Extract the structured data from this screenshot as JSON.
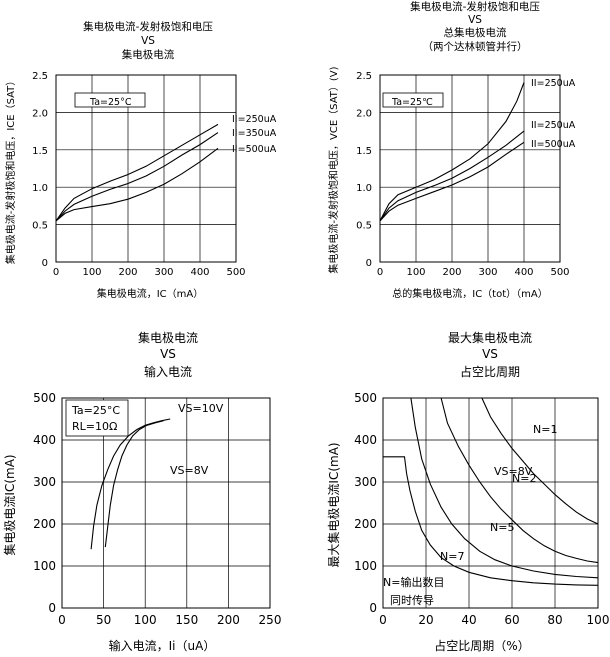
{
  "chart_data": [
    {
      "id": "c1",
      "type": "line",
      "title_lines": [
        "集电极电流-发射极饱和电压",
        "VS",
        "集电极电流"
      ],
      "xlabel": "集电极电流，IC（mA）",
      "ylabel": "集电极电流-发射极饱和电压，ICE（SAT）",
      "xlim": [
        0,
        500
      ],
      "ylim": [
        0,
        2.5
      ],
      "x_ticks": [
        0,
        100,
        200,
        300,
        400,
        500
      ],
      "y_ticks": [
        0,
        0.5,
        1.0,
        1.5,
        2.0,
        2.5
      ],
      "y_tick_labels": [
        "0",
        "0.5",
        "1.0",
        "1.5",
        "2.0",
        "2.5"
      ],
      "grid": true,
      "annotation": "Ta=25°C",
      "series": [
        {
          "name": "II=250uA",
          "x": [
            0,
            25,
            50,
            100,
            150,
            200,
            250,
            300,
            350,
            400,
            450
          ],
          "y": [
            0.55,
            0.72,
            0.85,
            0.98,
            1.08,
            1.17,
            1.28,
            1.42,
            1.56,
            1.7,
            1.84
          ]
        },
        {
          "name": "II=350uA",
          "x": [
            0,
            25,
            50,
            100,
            150,
            200,
            250,
            300,
            350,
            400,
            450
          ],
          "y": [
            0.55,
            0.68,
            0.77,
            0.88,
            0.97,
            1.05,
            1.15,
            1.28,
            1.43,
            1.57,
            1.73
          ]
        },
        {
          "name": "II=500uA",
          "x": [
            0,
            25,
            50,
            100,
            150,
            200,
            250,
            300,
            350,
            400,
            450
          ],
          "y": [
            0.55,
            0.65,
            0.7,
            0.74,
            0.78,
            0.84,
            0.93,
            1.04,
            1.18,
            1.34,
            1.52
          ]
        }
      ]
    },
    {
      "id": "c2",
      "type": "line",
      "title_lines": [
        "集电极电流-发射极饱和电压",
        "VS",
        "总集电极电流",
        "（两个达林顿管并行）"
      ],
      "xlabel": "总的集电极电流，IC（tot）（mA）",
      "ylabel": "集电极电流-发射极饱和电压，VCE（SAT）(V)",
      "xlim": [
        0,
        500
      ],
      "ylim": [
        0,
        2.5
      ],
      "x_ticks": [
        0,
        100,
        200,
        300,
        400,
        500
      ],
      "y_ticks": [
        0,
        0.5,
        1.0,
        1.5,
        2.0,
        2.5
      ],
      "y_tick_labels": [
        "0",
        "0.5",
        "1.0",
        "1.5",
        "2.0",
        "2.5"
      ],
      "grid": true,
      "annotation": "Ta=25℃",
      "series": [
        {
          "name": "II=250uA",
          "x": [
            0,
            25,
            50,
            100,
            150,
            200,
            250,
            300,
            350,
            380,
            400
          ],
          "y": [
            0.55,
            0.78,
            0.9,
            1.0,
            1.1,
            1.23,
            1.38,
            1.58,
            1.88,
            2.15,
            2.4
          ]
        },
        {
          "name": "II=250uA",
          "x": [
            0,
            25,
            50,
            100,
            150,
            200,
            250,
            300,
            350,
            400
          ],
          "y": [
            0.55,
            0.72,
            0.82,
            0.93,
            1.02,
            1.12,
            1.25,
            1.4,
            1.56,
            1.75
          ]
        },
        {
          "name": "II=500uA",
          "x": [
            0,
            25,
            50,
            100,
            150,
            200,
            250,
            300,
            350,
            400
          ],
          "y": [
            0.55,
            0.68,
            0.76,
            0.85,
            0.94,
            1.03,
            1.14,
            1.27,
            1.44,
            1.6
          ]
        }
      ]
    },
    {
      "id": "c3",
      "type": "line",
      "title_lines": [
        "集电极电流",
        "VS",
        "输入电流"
      ],
      "xlabel": "输入电流，Ii（uA）",
      "ylabel": "集电极电流IC(mA)",
      "xlim": [
        0,
        250
      ],
      "ylim": [
        0,
        500
      ],
      "x_ticks": [
        0,
        50,
        100,
        150,
        200,
        250
      ],
      "y_ticks": [
        0,
        100,
        200,
        300,
        400,
        500
      ],
      "y_tick_labels": [
        "0",
        "100",
        "200",
        "300",
        "400",
        "500"
      ],
      "grid": true,
      "annotations": [
        "Ta=25°C",
        "RL=10Ω",
        "VS=10V",
        "VS=8V"
      ],
      "series": [
        {
          "name": "VS=10V",
          "x": [
            35,
            38,
            42,
            48,
            55,
            62,
            70,
            80,
            90,
            100,
            110,
            120,
            130
          ],
          "y": [
            140,
            195,
            245,
            292,
            330,
            362,
            388,
            410,
            425,
            435,
            441,
            446,
            450
          ]
        },
        {
          "name": "VS=8V",
          "x": [
            52,
            55,
            58,
            62,
            67,
            72,
            78,
            85,
            93,
            102,
            112,
            122
          ],
          "y": [
            145,
            195,
            245,
            292,
            330,
            362,
            388,
            410,
            425,
            435,
            441,
            446
          ]
        }
      ]
    },
    {
      "id": "c4",
      "type": "line",
      "title_lines": [
        "最大集电极电流",
        "VS",
        "占空比周期"
      ],
      "xlabel": "占空比周期（%）",
      "ylabel": "最大集电极电流IC(mA)",
      "xlim": [
        0,
        100
      ],
      "ylim": [
        0,
        500
      ],
      "x_ticks": [
        0,
        20,
        40,
        60,
        80,
        100
      ],
      "y_ticks": [
        0,
        100,
        200,
        300,
        400,
        500
      ],
      "y_tick_labels": [
        "0",
        "100",
        "200",
        "300",
        "400",
        "500"
      ],
      "grid": true,
      "annotations": [
        "VS=8V",
        "N=输出数目",
        "同时传导"
      ],
      "series": [
        {
          "name": "N=1",
          "x": [
            46,
            50,
            55,
            60,
            65,
            70,
            75,
            80,
            85,
            90,
            95,
            100
          ],
          "y": [
            500,
            455,
            415,
            380,
            350,
            320,
            295,
            270,
            248,
            228,
            212,
            200
          ]
        },
        {
          "name": "N=2",
          "x": [
            27,
            30,
            35,
            40,
            45,
            50,
            55,
            60,
            65,
            70,
            75,
            80,
            85,
            90,
            95,
            100
          ],
          "y": [
            500,
            440,
            385,
            340,
            300,
            265,
            235,
            210,
            185,
            165,
            148,
            135,
            125,
            118,
            112,
            108
          ]
        },
        {
          "name": "N=5",
          "x": [
            13,
            15,
            18,
            22,
            27,
            32,
            38,
            45,
            52,
            60,
            70,
            80,
            90,
            100
          ],
          "y": [
            500,
            430,
            355,
            295,
            240,
            200,
            165,
            135,
            115,
            100,
            88,
            80,
            75,
            72
          ]
        },
        {
          "name": "N=7",
          "x": [
            0,
            10,
            11,
            12.5,
            15,
            18,
            22,
            27,
            33,
            40,
            50,
            60,
            70,
            80,
            90,
            100
          ],
          "y": [
            360,
            360,
            320,
            280,
            230,
            185,
            150,
            120,
            100,
            85,
            72,
            65,
            60,
            57,
            55,
            54
          ]
        }
      ]
    }
  ]
}
